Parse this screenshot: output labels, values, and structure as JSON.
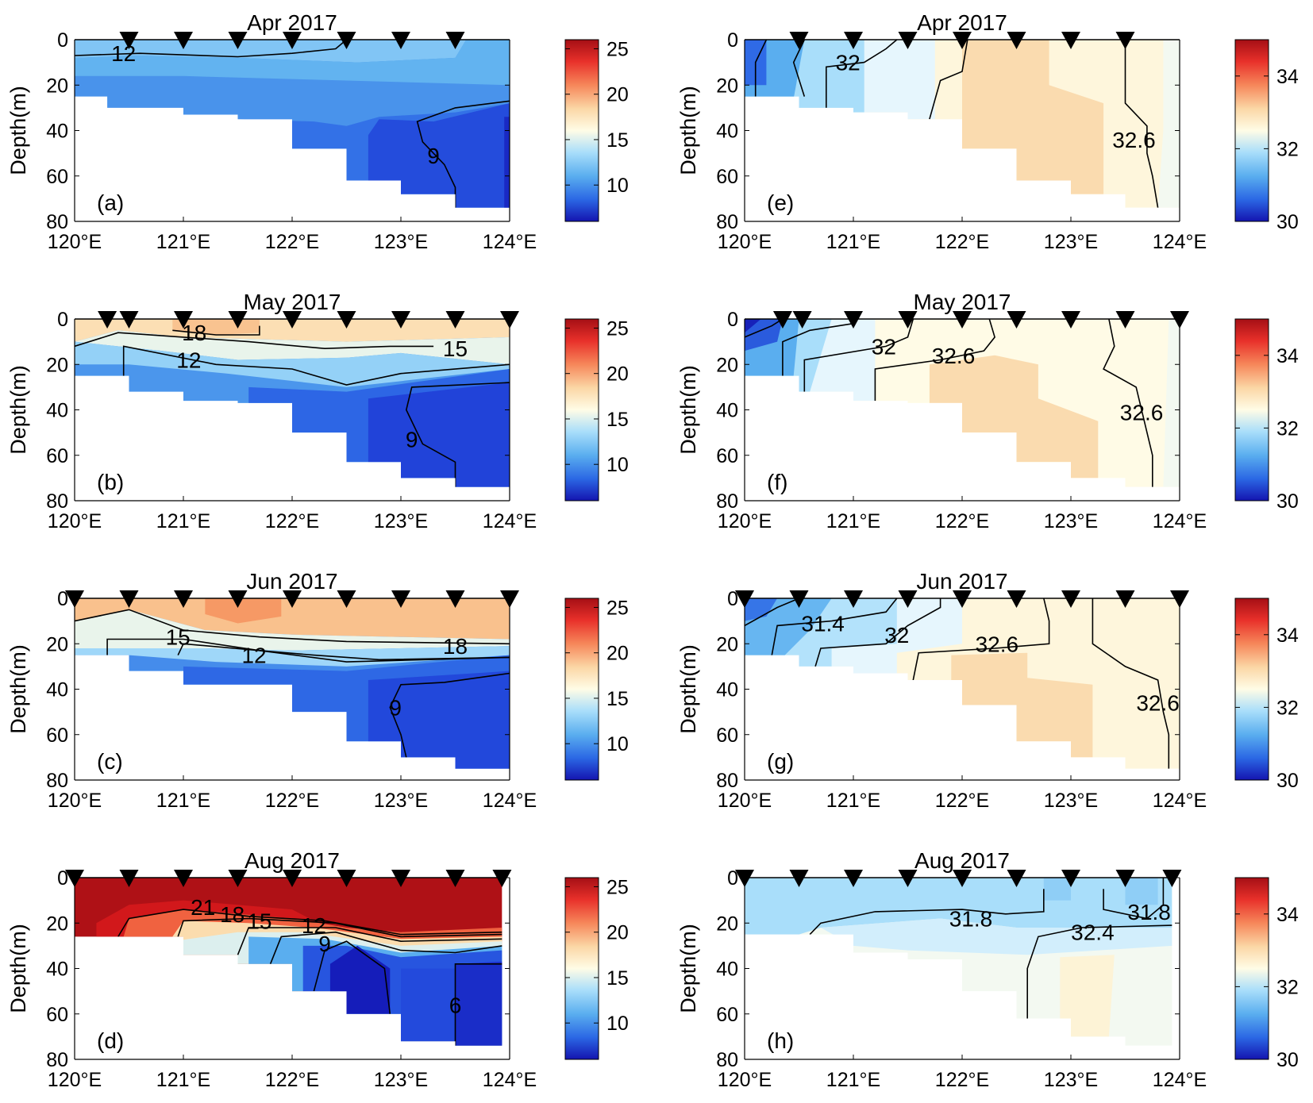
{
  "figure": {
    "colorbar_temperature_ticks": [
      "25",
      "20",
      "15",
      "10"
    ],
    "colorbar_salinity_ticks": [
      "34",
      "32",
      "30"
    ]
  },
  "chart_data": [
    {
      "type": "heatmap",
      "panel_label": "(a)",
      "title": "Apr 2017",
      "variable": "temperature",
      "ylabel": "Depth(m)",
      "xlabel": "",
      "xticks": [
        "120°E",
        "121°E",
        "122°E",
        "123°E",
        "124°E"
      ],
      "yticks": [
        "0",
        "20",
        "40",
        "60",
        "80"
      ],
      "xlim": [
        120,
        124
      ],
      "ylim": [
        0,
        80
      ],
      "clim": [
        6,
        26
      ],
      "stations": [
        120.5,
        121.0,
        121.5,
        122.0,
        122.5,
        123.0,
        123.5
      ],
      "contour_labels": [
        {
          "text": "12",
          "lon": 120.45,
          "depth": 6
        },
        {
          "text": "9",
          "lon": 123.3,
          "depth": 51
        }
      ]
    },
    {
      "type": "heatmap",
      "panel_label": "(b)",
      "title": "May 2017",
      "variable": "temperature",
      "ylabel": "Depth(m)",
      "xlabel": "",
      "xticks": [
        "120°E",
        "121°E",
        "122°E",
        "123°E",
        "124°E"
      ],
      "yticks": [
        "0",
        "20",
        "40",
        "60",
        "80"
      ],
      "xlim": [
        120,
        124
      ],
      "ylim": [
        0,
        80
      ],
      "clim": [
        6,
        26
      ],
      "stations": [
        120.3,
        120.5,
        121.0,
        121.5,
        122.0,
        122.5,
        123.0,
        123.5,
        124.0
      ],
      "contour_labels": [
        {
          "text": "18",
          "lon": 121.1,
          "depth": 6
        },
        {
          "text": "12",
          "lon": 121.05,
          "depth": 18
        },
        {
          "text": "15",
          "lon": 123.5,
          "depth": 13
        },
        {
          "text": "9",
          "lon": 123.1,
          "depth": 53
        }
      ]
    },
    {
      "type": "heatmap",
      "panel_label": "(c)",
      "title": "Jun 2017",
      "variable": "temperature",
      "ylabel": "Depth(m)",
      "xlabel": "",
      "xticks": [
        "120°E",
        "121°E",
        "122°E",
        "123°E",
        "124°E"
      ],
      "yticks": [
        "0",
        "20",
        "40",
        "60",
        "80"
      ],
      "xlim": [
        120,
        124
      ],
      "ylim": [
        0,
        80
      ],
      "clim": [
        6,
        26
      ],
      "stations": [
        120.0,
        120.5,
        121.0,
        121.5,
        122.0,
        122.5,
        123.0,
        123.5,
        124.0
      ],
      "contour_labels": [
        {
          "text": "15",
          "lon": 120.95,
          "depth": 17
        },
        {
          "text": "12",
          "lon": 121.65,
          "depth": 25
        },
        {
          "text": "18",
          "lon": 123.5,
          "depth": 21
        },
        {
          "text": "9",
          "lon": 122.95,
          "depth": 48
        }
      ]
    },
    {
      "type": "heatmap",
      "panel_label": "(d)",
      "title": "Aug 2017",
      "variable": "temperature",
      "ylabel": "Depth(m)",
      "xlabel": "",
      "xticks": [
        "120°E",
        "121°E",
        "122°E",
        "123°E",
        "124°E"
      ],
      "yticks": [
        "0",
        "20",
        "40",
        "60",
        "80"
      ],
      "xlim": [
        120,
        124
      ],
      "ylim": [
        0,
        80
      ],
      "clim": [
        6,
        26
      ],
      "stations": [
        120.0,
        120.5,
        121.0,
        121.5,
        122.0,
        122.5,
        123.0,
        123.5,
        123.93
      ],
      "contour_labels": [
        {
          "text": "21",
          "lon": 121.18,
          "depth": 13
        },
        {
          "text": "18",
          "lon": 121.45,
          "depth": 16
        },
        {
          "text": "15",
          "lon": 121.7,
          "depth": 19
        },
        {
          "text": "12",
          "lon": 122.2,
          "depth": 21
        },
        {
          "text": "9",
          "lon": 122.3,
          "depth": 29
        },
        {
          "text": "6",
          "lon": 123.5,
          "depth": 56
        }
      ]
    },
    {
      "type": "heatmap",
      "panel_label": "(e)",
      "title": "Apr 2017",
      "variable": "salinity",
      "ylabel": "Depth(m)",
      "xlabel": "",
      "xticks": [
        "120°E",
        "121°E",
        "122°E",
        "123°E",
        "124°E"
      ],
      "yticks": [
        "0",
        "20",
        "40",
        "60",
        "80"
      ],
      "xlim": [
        120,
        124
      ],
      "ylim": [
        0,
        80
      ],
      "clim": [
        30,
        35
      ],
      "stations": [
        120.5,
        121.0,
        121.5,
        122.0,
        122.5,
        123.0,
        123.5
      ],
      "contour_labels": [
        {
          "text": "32",
          "lon": 120.95,
          "depth": 10
        },
        {
          "text": "32.6",
          "lon": 123.58,
          "depth": 44
        }
      ]
    },
    {
      "type": "heatmap",
      "panel_label": "(f)",
      "title": "May 2017",
      "variable": "salinity",
      "ylabel": "Depth(m)",
      "xlabel": "",
      "xticks": [
        "120°E",
        "121°E",
        "122°E",
        "123°E",
        "124°E"
      ],
      "yticks": [
        "0",
        "20",
        "40",
        "60",
        "80"
      ],
      "xlim": [
        120,
        124
      ],
      "ylim": [
        0,
        80
      ],
      "clim": [
        30,
        35
      ],
      "stations": [
        120.35,
        120.53,
        121.0,
        121.5,
        122.0,
        122.5,
        123.0,
        123.5,
        124.0
      ],
      "contour_labels": [
        {
          "text": "32",
          "lon": 121.28,
          "depth": 12
        },
        {
          "text": "32.6",
          "lon": 121.92,
          "depth": 16
        },
        {
          "text": "32.6",
          "lon": 123.65,
          "depth": 41
        }
      ]
    },
    {
      "type": "heatmap",
      "panel_label": "(g)",
      "title": "Jun 2017",
      "variable": "salinity",
      "ylabel": "Depth(m)",
      "xlabel": "",
      "xticks": [
        "120°E",
        "121°E",
        "122°E",
        "123°E",
        "124°E"
      ],
      "yticks": [
        "0",
        "20",
        "40",
        "60",
        "80"
      ],
      "xlim": [
        120,
        124
      ],
      "ylim": [
        0,
        80
      ],
      "clim": [
        30,
        35
      ],
      "stations": [
        120.0,
        120.5,
        121.0,
        121.5,
        122.0,
        122.5,
        123.0,
        123.5,
        124.0
      ],
      "contour_labels": [
        {
          "text": "31.4",
          "lon": 120.72,
          "depth": 11
        },
        {
          "text": "32",
          "lon": 121.4,
          "depth": 16
        },
        {
          "text": "32.6",
          "lon": 122.32,
          "depth": 20
        },
        {
          "text": "32.6",
          "lon": 123.8,
          "depth": 46
        }
      ]
    },
    {
      "type": "heatmap",
      "panel_label": "(h)",
      "title": "Aug 2017",
      "variable": "salinity",
      "ylabel": "Depth(m)",
      "xlabel": "",
      "xticks": [
        "120°E",
        "121°E",
        "122°E",
        "123°E",
        "124°E"
      ],
      "yticks": [
        "0",
        "20",
        "40",
        "60",
        "80"
      ],
      "xlim": [
        120,
        124
      ],
      "ylim": [
        0,
        80
      ],
      "clim": [
        30,
        35
      ],
      "stations": [
        120.0,
        120.5,
        121.0,
        121.5,
        122.0,
        122.5,
        123.0,
        123.5,
        123.93
      ],
      "contour_labels": [
        {
          "text": "31.8",
          "lon": 122.08,
          "depth": 18
        },
        {
          "text": "32.4",
          "lon": 123.2,
          "depth": 24
        },
        {
          "text": "31.8",
          "lon": 123.72,
          "depth": 15
        }
      ]
    }
  ]
}
